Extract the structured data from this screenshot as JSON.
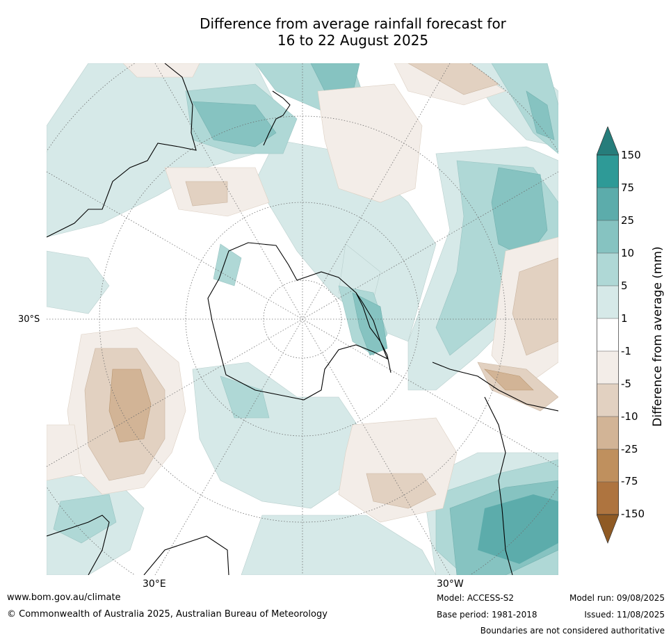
{
  "title": {
    "line1": "Difference from average rainfall forecast for",
    "line2": "16 to 22 August 2025"
  },
  "map": {
    "projection": "south-polar-stereographic",
    "labels": {
      "lat_30s": "30°S",
      "lon_30e": "30°E",
      "lon_30w": "30°W"
    }
  },
  "colorbar": {
    "title": "Difference from average (mm)",
    "ticks": [
      "150",
      "75",
      "25",
      "10",
      "5",
      "1",
      "-1",
      "-5",
      "-10",
      "-25",
      "-75",
      "-150"
    ],
    "colors": {
      "over": "#267d7b",
      "b75_150": "#2e9a97",
      "b25_75": "#5cacab",
      "b10_25": "#86c3c1",
      "b5_10": "#afd8d6",
      "b1_5": "#d6e9e8",
      "neutral": "#ffffff",
      "bm1_m5": "#f3ede8",
      "bm5_m10": "#e2d1c1",
      "bm10_m25": "#d2b496",
      "bm25_m75": "#bf905e",
      "bm75_m150": "#ae743f",
      "under": "#8f5a24"
    }
  },
  "footer": {
    "website": "www.bom.gov.au/climate",
    "copyright": "© Commonwealth of Australia 2025, Australian Bureau of Meteorology",
    "model": "Model: ACCESS-S2",
    "base_period": "Base period: 1981-2018",
    "model_run": "Model run: 09/08/2025",
    "issued": "Issued: 11/08/2025",
    "disclaimer": "Boundaries are not considered authoritative"
  }
}
